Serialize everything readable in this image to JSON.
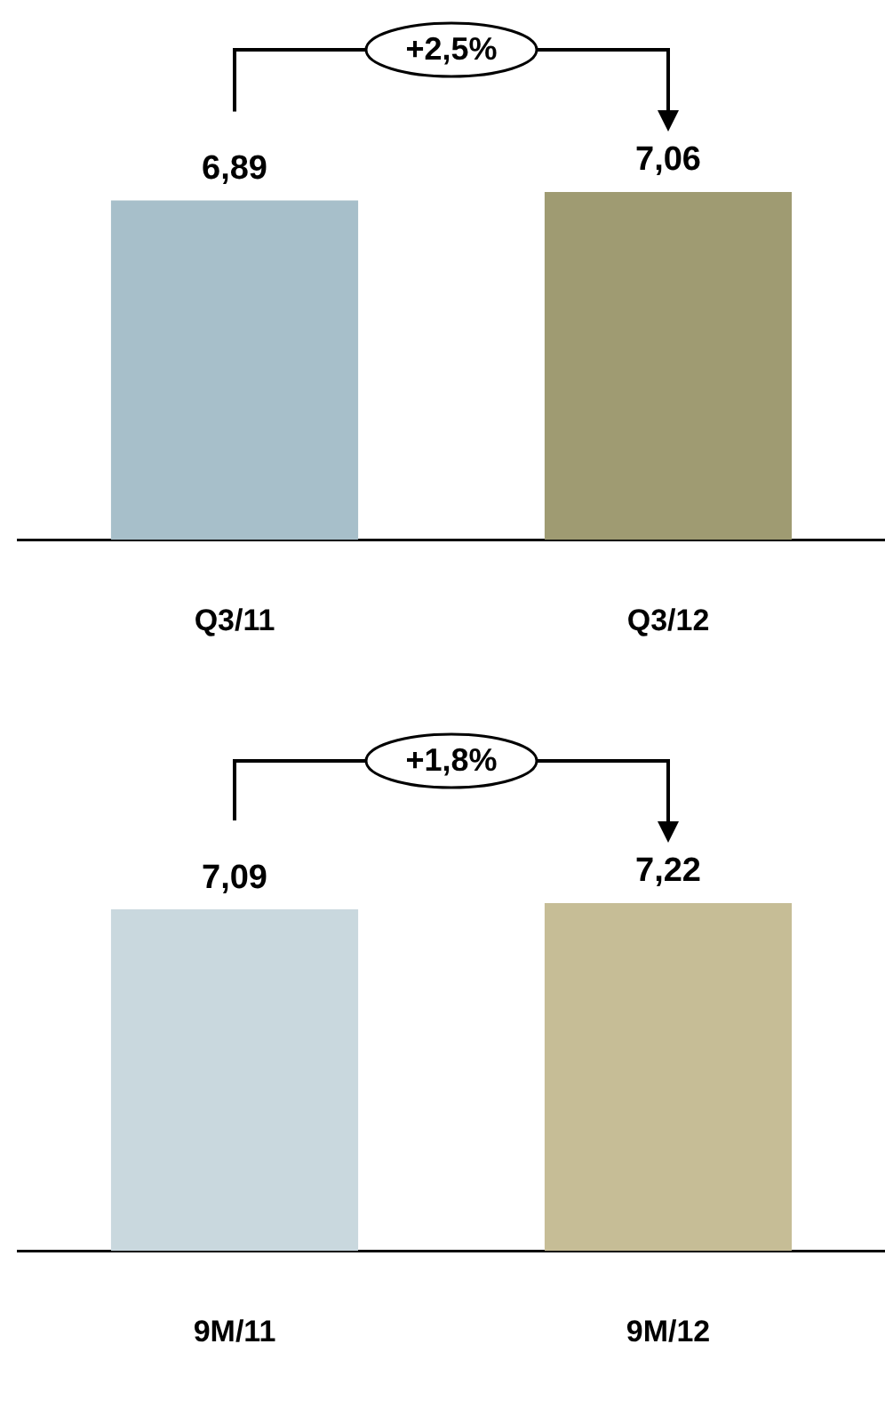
{
  "chart_data": [
    {
      "type": "bar",
      "categories": [
        "Q3/11",
        "Q3/12"
      ],
      "values": [
        6.89,
        7.06
      ],
      "colors": [
        "#a7bfca",
        "#9f9b72"
      ],
      "value_labels": [
        "6,89",
        "7,06"
      ],
      "annotations": [
        "+2,5%"
      ]
    },
    {
      "type": "bar",
      "categories": [
        "9M/11",
        "9M/12"
      ],
      "values": [
        7.09,
        7.22
      ],
      "colors": [
        "#c9d8de",
        "#c6bd96"
      ],
      "value_labels": [
        "7,09",
        "7,22"
      ],
      "annotations": [
        "+1,8%"
      ]
    }
  ]
}
